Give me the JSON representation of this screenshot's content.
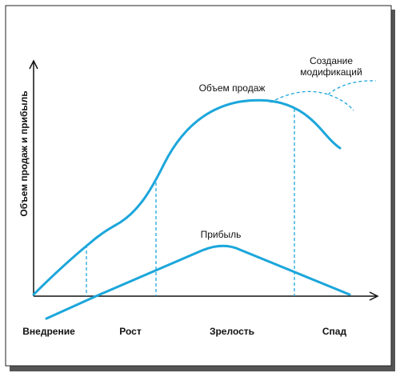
{
  "y_axis_label": "Объем продаж и прибыль",
  "curves": {
    "sales": "Объем продаж",
    "profit": "Прибыль",
    "modifications": [
      "Создание",
      "модификаций"
    ]
  },
  "stages": [
    "Внедрение",
    "Рост",
    "Зрелость",
    "Спад"
  ]
}
